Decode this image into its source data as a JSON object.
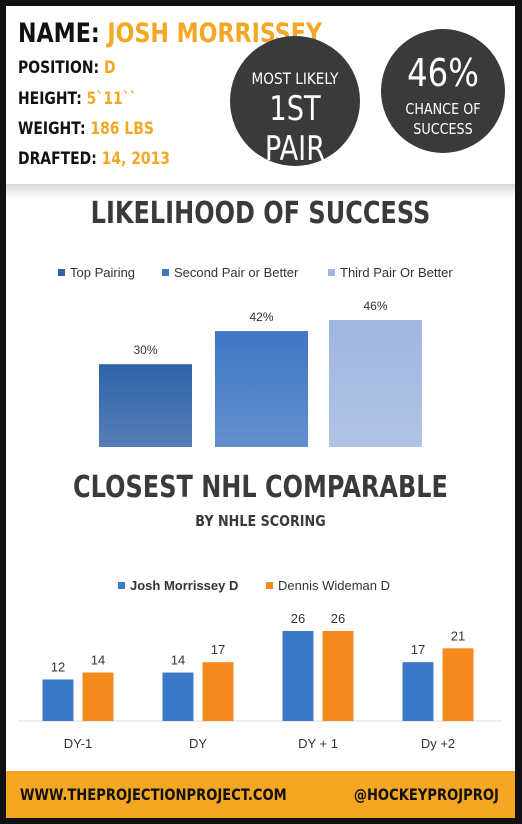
{
  "player": {
    "name_label": "NAME:",
    "name": "JOSH MORRISSEY",
    "position_label": "POSITION:",
    "position": "D",
    "height_label": "HEIGHT:",
    "height": "5`11``",
    "weight_label": "WEIGHT:",
    "weight": "186 LBS",
    "drafted_label": "DRAFTED:",
    "drafted": "14, 2013"
  },
  "badges": {
    "likely_top": "MOST LIKELY",
    "likely_main": "1ST PAIR",
    "chance_main": "46%",
    "chance_line1": "CHANCE OF",
    "chance_line2": "SUCCESS"
  },
  "chart_data": [
    {
      "type": "bar",
      "title": "LIKELIHOOD OF SUCCESS",
      "legend_position": "top",
      "series": [
        {
          "name": "Top Pairing",
          "values": [
            30
          ],
          "color": "#2f62a8"
        },
        {
          "name": "Second Pair or Better",
          "values": [
            42
          ],
          "color": "#4077c4"
        },
        {
          "name": "Third Pair Or Better",
          "values": [
            46
          ],
          "color": "#9fb6e0"
        }
      ],
      "data_labels": [
        "30%",
        "42%",
        "46%"
      ],
      "ylim": [
        0,
        50
      ],
      "grid": false
    },
    {
      "type": "bar",
      "title": "CLOSEST NHL COMPARABLE",
      "subtitle": "BY NHLE SCORING",
      "legend_position": "top",
      "categories": [
        "DY-1",
        "DY",
        "DY + 1",
        "Dy +2"
      ],
      "series": [
        {
          "name": "Josh Morrissey D",
          "values": [
            12,
            14,
            26,
            17
          ],
          "color": "#3c78c8"
        },
        {
          "name": "Dennis Wideman D",
          "values": [
            14,
            17,
            26,
            21
          ],
          "color": "#f58a1f"
        }
      ],
      "ylim": [
        0,
        30
      ],
      "grid": false
    }
  ],
  "footer": {
    "website": "WWW.THEPROJECTIONPROJECT.COM",
    "handle": "@HOCKEYPROJPROJ"
  }
}
